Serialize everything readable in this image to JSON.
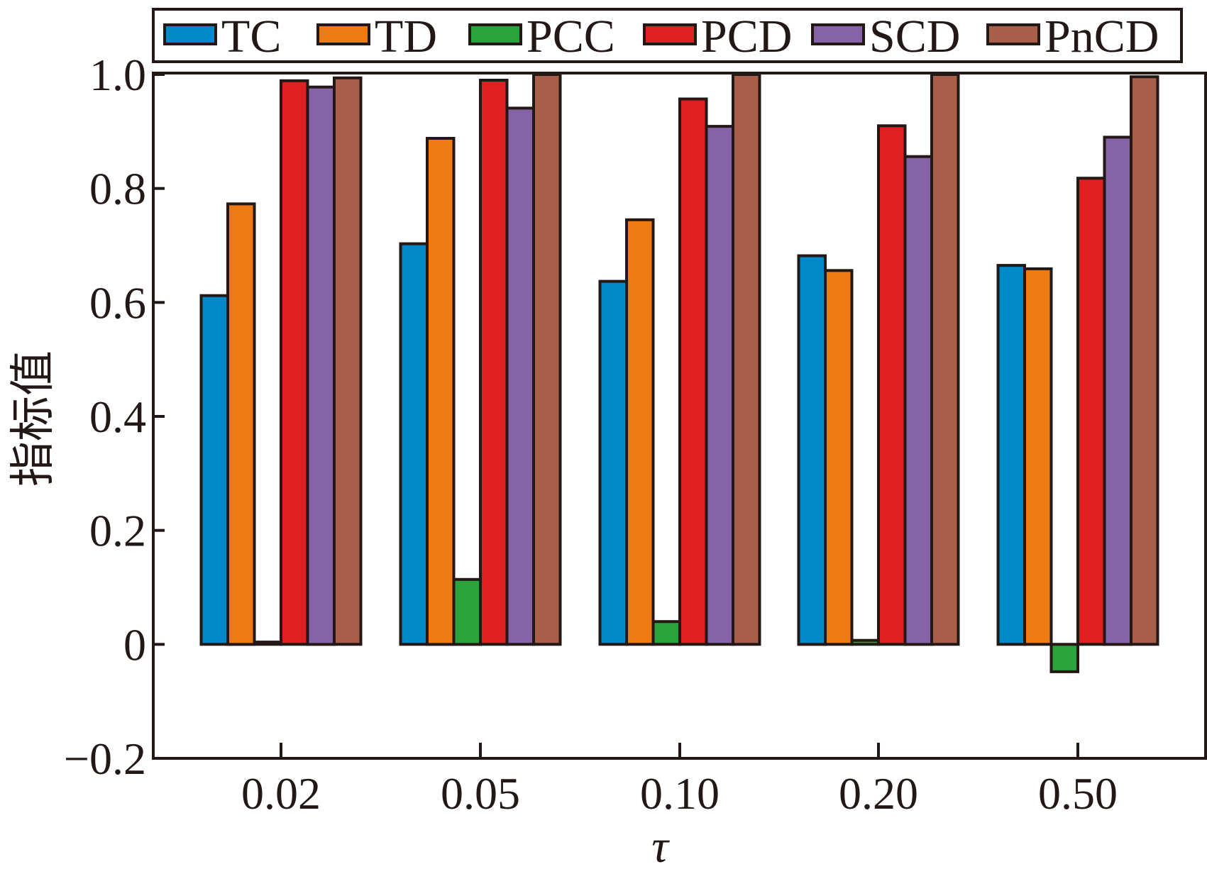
{
  "chart_data": {
    "type": "bar",
    "title": "",
    "xlabel": "τ",
    "ylabel": "指标值",
    "ylim": [
      -0.2,
      1.0
    ],
    "yticks": [
      -0.2,
      0,
      0.2,
      0.4,
      0.6,
      0.8,
      1.0
    ],
    "ytick_labels": [
      "−0.2",
      "0",
      "0.2",
      "0.4",
      "0.6",
      "0.8",
      "1.0"
    ],
    "categories": [
      "0.02",
      "0.05",
      "0.10",
      "0.20",
      "0.50"
    ],
    "legend_position": "top",
    "series": [
      {
        "name": "TC",
        "color": "#0089c8",
        "values": [
          0.612,
          0.703,
          0.637,
          0.682,
          0.665
        ]
      },
      {
        "name": "TD",
        "color": "#ee7a12",
        "values": [
          0.773,
          0.888,
          0.745,
          0.656,
          0.659
        ]
      },
      {
        "name": "PCC",
        "color": "#2aa43a",
        "values": [
          0.004,
          0.114,
          0.04,
          0.007,
          -0.048
        ]
      },
      {
        "name": "PCD",
        "color": "#e01f23",
        "values": [
          0.989,
          0.99,
          0.957,
          0.91,
          0.818
        ]
      },
      {
        "name": "SCD",
        "color": "#8663a8",
        "values": [
          0.978,
          0.941,
          0.909,
          0.856,
          0.89
        ]
      },
      {
        "name": "PnCD",
        "color": "#a85e48",
        "values": [
          0.994,
          1.0,
          1.0,
          1.0,
          0.996
        ]
      }
    ]
  }
}
